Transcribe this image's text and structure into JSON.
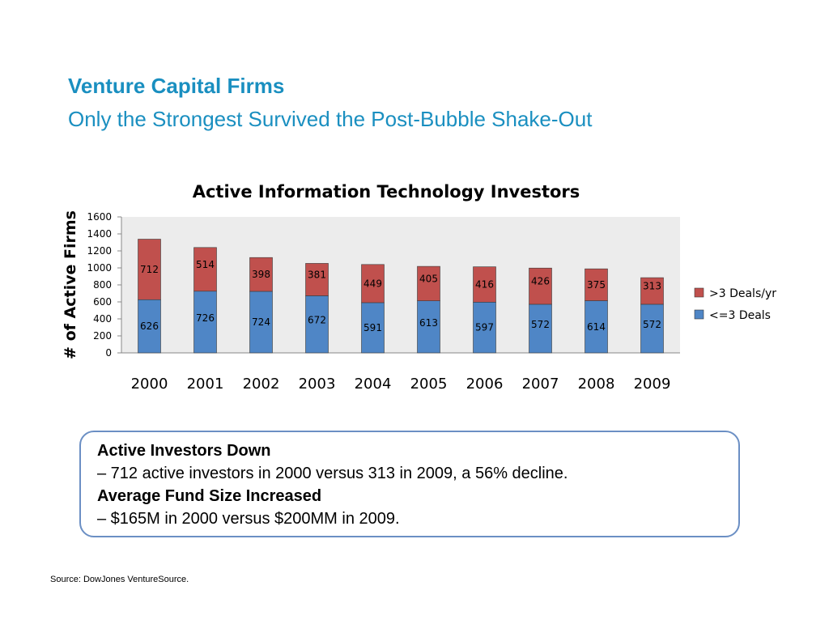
{
  "slide": {
    "title": "Venture Capital Firms",
    "subtitle": "Only the Strongest Survived the Post-Bubble Shake-Out",
    "source": "Source: DowJones VentureSource."
  },
  "callout": {
    "heading1": "Active Investors Down",
    "text1": "– 712 active investors in 2000 versus 313 in 2009, a 56% decline.",
    "heading2": "Average Fund Size Increased",
    "text2": "– $165M in 2000 versus $200MM in 2009."
  },
  "colors": {
    "lower": "#4f86c6",
    "upper": "#c0504d",
    "plot_bg": "#ececec"
  },
  "chart_data": {
    "type": "bar",
    "stacked": true,
    "title": "Active Information Technology Investors",
    "xlabel": "",
    "ylabel": "# of Active Firms",
    "ylim": [
      0,
      1600
    ],
    "yticks": [
      0,
      200,
      400,
      600,
      800,
      1000,
      1200,
      1400,
      1600
    ],
    "categories": [
      "2000",
      "2001",
      "2002",
      "2003",
      "2004",
      "2005",
      "2006",
      "2007",
      "2008",
      "2009"
    ],
    "series": [
      {
        "name": "<=3 Deals",
        "values": [
          626,
          726,
          724,
          672,
          591,
          613,
          597,
          572,
          614,
          572
        ]
      },
      {
        "name": ">3 Deals/yr",
        "values": [
          712,
          514,
          398,
          381,
          449,
          405,
          416,
          426,
          375,
          313
        ]
      }
    ],
    "legend": [
      ">3 Deals/yr",
      "<=3 Deals"
    ],
    "legend_position": "right"
  }
}
